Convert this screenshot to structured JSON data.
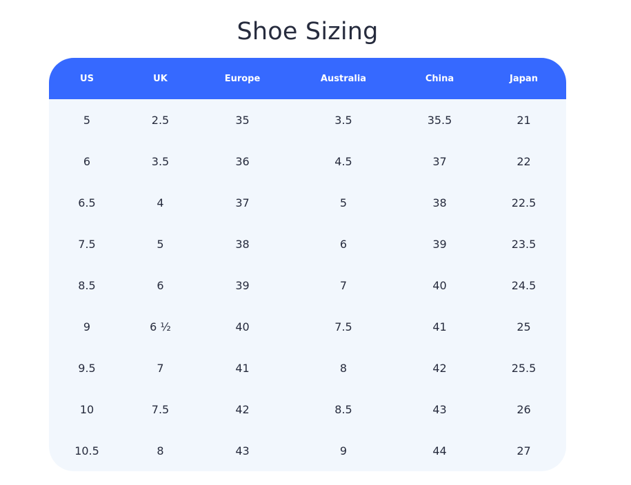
{
  "page": {
    "title": "Shoe Sizing"
  },
  "table": {
    "columns": [
      "US",
      "UK",
      "Europe",
      "Australia",
      "China",
      "Japan"
    ],
    "rows": [
      [
        "5",
        "2.5",
        "35",
        "3.5",
        "35.5",
        "21"
      ],
      [
        "6",
        "3.5",
        "36",
        "4.5",
        "37",
        "22"
      ],
      [
        "6.5",
        "4",
        "37",
        "5",
        "38",
        "22.5"
      ],
      [
        "7.5",
        "5",
        "38",
        "6",
        "39",
        "23.5"
      ],
      [
        "8.5",
        "6",
        "39",
        "7",
        "40",
        "24.5"
      ],
      [
        "9",
        "6 ½",
        "40",
        "7.5",
        "41",
        "25"
      ],
      [
        "9.5",
        "7",
        "41",
        "8",
        "42",
        "25.5"
      ],
      [
        "10",
        "7.5",
        "42",
        "8.5",
        "43",
        "26"
      ],
      [
        "10.5",
        "8",
        "43",
        "9",
        "44",
        "27"
      ]
    ]
  },
  "colors": {
    "header_bg": "#3669ff",
    "header_text": "#ffffff",
    "body_bg": "#f2f7fd",
    "text": "#262b3d"
  }
}
